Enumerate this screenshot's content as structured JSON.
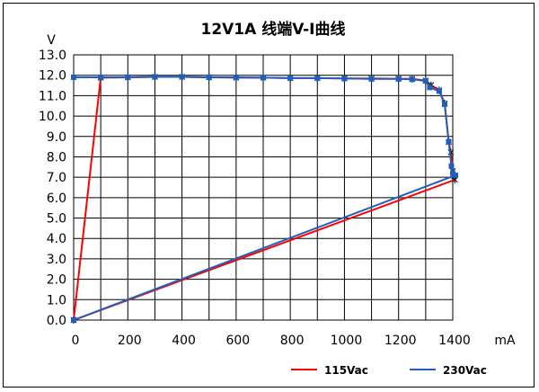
{
  "chart_data": {
    "type": "line",
    "title": "12V1A 线端V-I曲线",
    "xlabel": "mA",
    "ylabel": "V",
    "xlim": [
      0,
      1400
    ],
    "ylim": [
      0,
      13
    ],
    "x_ticks": [
      "0",
      "200",
      "400",
      "600",
      "800",
      "1000",
      "1200",
      "1400"
    ],
    "y_ticks": [
      "0.0",
      "1.0",
      "2.0",
      "3.0",
      "4.0",
      "5.0",
      "6.0",
      "7.0",
      "8.0",
      "9.0",
      "10.0",
      "11.0",
      "12.0",
      "13.0"
    ],
    "grid": true,
    "legend_position": "bottom-right",
    "series": [
      {
        "name": "115Vac",
        "color": "#ff0000",
        "marker": "asterisk",
        "points": [
          [
            0,
            0.0
          ],
          [
            100,
            11.88
          ],
          [
            200,
            11.9
          ],
          [
            300,
            11.92
          ],
          [
            400,
            11.92
          ],
          [
            500,
            11.9
          ],
          [
            600,
            11.88
          ],
          [
            700,
            11.88
          ],
          [
            800,
            11.86
          ],
          [
            900,
            11.86
          ],
          [
            1000,
            11.84
          ],
          [
            1100,
            11.84
          ],
          [
            1200,
            11.83
          ],
          [
            1250,
            11.82
          ],
          [
            1300,
            11.74
          ],
          [
            1320,
            11.52
          ],
          [
            1350,
            11.27
          ],
          [
            1370,
            10.62
          ],
          [
            1385,
            8.72
          ],
          [
            1393,
            8.22
          ],
          [
            1400,
            7.3
          ],
          [
            1405,
            7.05
          ],
          [
            1408,
            6.88
          ],
          [
            0,
            0.0
          ]
        ]
      },
      {
        "name": "230Vac",
        "color": "#1f5fbf",
        "marker": "square",
        "points": [
          [
            0,
            11.9
          ],
          [
            100,
            11.9
          ],
          [
            200,
            11.9
          ],
          [
            300,
            11.92
          ],
          [
            400,
            11.92
          ],
          [
            500,
            11.9
          ],
          [
            600,
            11.9
          ],
          [
            700,
            11.88
          ],
          [
            800,
            11.86
          ],
          [
            900,
            11.86
          ],
          [
            1000,
            11.84
          ],
          [
            1100,
            11.82
          ],
          [
            1200,
            11.82
          ],
          [
            1250,
            11.8
          ],
          [
            1300,
            11.72
          ],
          [
            1315,
            11.4
          ],
          [
            1350,
            11.22
          ],
          [
            1370,
            10.58
          ],
          [
            1385,
            8.74
          ],
          [
            1395,
            7.55
          ],
          [
            1400,
            7.2
          ],
          [
            1410,
            7.1
          ],
          [
            0,
            0.0
          ]
        ]
      }
    ]
  }
}
